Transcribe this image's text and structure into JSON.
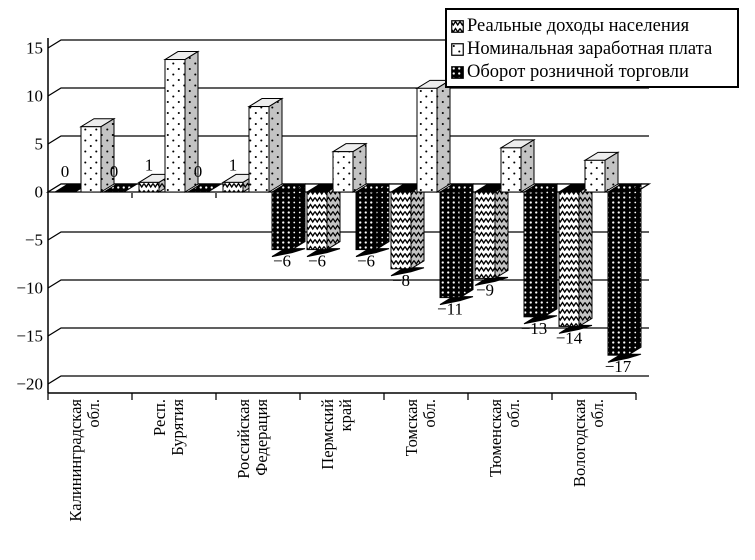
{
  "legend": {
    "items": [
      {
        "label": "Реальные доходы населения",
        "icon": "zigzag-swatch"
      },
      {
        "label": "Номинальная заработная плата",
        "icon": "dots-swatch"
      },
      {
        "label": "Оборот розничной торговли",
        "icon": "grid-swatch"
      }
    ]
  },
  "chart_data": {
    "type": "bar",
    "style": "3d-columns-black-white-patterns",
    "categories": [
      "Калининградская обл.",
      "Респ. Бурятия",
      "Российская Федерация",
      "Пермский край",
      "Томская обл.",
      "Тюменская обл.",
      "Вологодская обл."
    ],
    "category_label_lines": [
      [
        "Калининградская",
        "обл."
      ],
      [
        "Респ.",
        "Бурятия"
      ],
      [
        "Российская",
        "Федерация"
      ],
      [
        "Пермский",
        "край"
      ],
      [
        "Томская",
        "обл."
      ],
      [
        "Тюменская",
        "обл."
      ],
      [
        "Вологодская",
        "обл."
      ]
    ],
    "series": [
      {
        "name": "Реальные доходы населения",
        "pattern": "zigzag",
        "values": [
          0,
          1,
          1,
          -6,
          -8,
          -9,
          -14
        ],
        "data_labels": [
          "0",
          "1",
          "1",
          "−6",
          "−8",
          "−9",
          "−14"
        ],
        "labels_shown": true
      },
      {
        "name": "Номинальная заработная плата",
        "pattern": "dots",
        "values": [
          6.8,
          13.8,
          8.9,
          4.2,
          10.8,
          4.6,
          3.3
        ],
        "data_labels": [],
        "labels_shown": false
      },
      {
        "name": "Оборот розничной торговли",
        "pattern": "dense-dots",
        "values": [
          0,
          0,
          -6,
          -6,
          -11,
          -13,
          -17
        ],
        "data_labels": [
          "0",
          "0",
          "−6",
          "−6",
          "−11",
          "−13",
          "−17"
        ],
        "labels_shown": true
      }
    ],
    "y_axis": {
      "min": -20,
      "max": 15,
      "step": 5,
      "ticks": [
        15,
        10,
        5,
        0,
        -5,
        -10,
        -15,
        -20
      ],
      "tick_labels": [
        "15",
        "10",
        "5",
        "0",
        "−5",
        "−10",
        "−15",
        "−20"
      ]
    },
    "grid": true,
    "legend_position": "top-right"
  },
  "colors": {
    "ink": "#000000",
    "background": "#ffffff",
    "side_face_gray": "#c3c3c3",
    "top_face_light": "#ededed"
  }
}
